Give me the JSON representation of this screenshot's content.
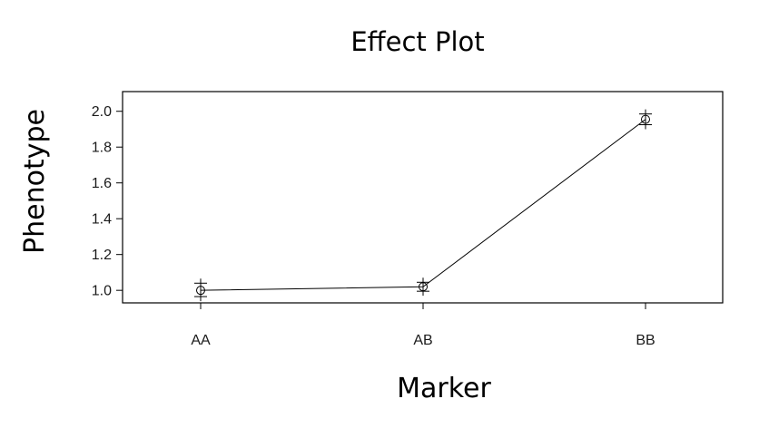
{
  "chart_data": {
    "type": "line",
    "title": "Effect Plot",
    "xlabel": "Marker",
    "ylabel": "Phenotype",
    "categories": [
      "AA",
      "AB",
      "BB"
    ],
    "series": [
      {
        "values": [
          1.0,
          1.02,
          1.955
        ],
        "error_upper": [
          1.04,
          1.045,
          1.985
        ],
        "error_lower": [
          0.965,
          0.995,
          1.925
        ]
      }
    ],
    "yticks": [
      "1.0",
      "1.2",
      "1.4",
      "1.6",
      "1.8",
      "2.0"
    ],
    "ylim": [
      0.93,
      2.11
    ],
    "grid": false,
    "legend": "none",
    "colors": {
      "line": "#000000",
      "frame": "#000000",
      "text": "#1a1a1a"
    }
  }
}
